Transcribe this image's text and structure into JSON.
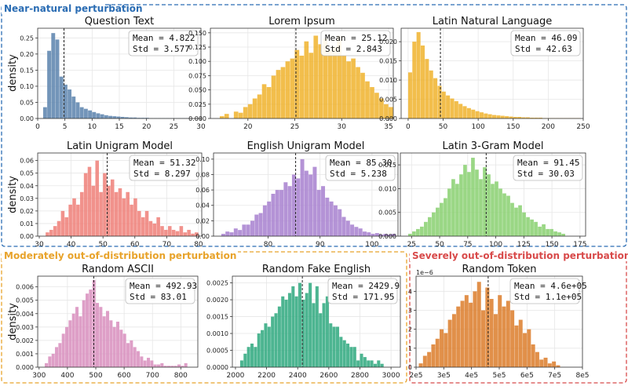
{
  "groups": [
    {
      "label": "Near-natural perturbation",
      "color": "#2a6cb3"
    },
    {
      "label": "Moderately out-of-distribution perturbation",
      "color": "#e8a32b"
    },
    {
      "label": "Severely out-of-distribution perturbation",
      "color": "#d84a4a"
    }
  ],
  "ylabel": "density",
  "chart_data": [
    {
      "type": "bar",
      "group": 0,
      "title": "Question Text",
      "color": "#5b82ad",
      "stats": {
        "mean": "4.822",
        "std": "3.577"
      },
      "mean_value": 4.822,
      "xlim": [
        0,
        30
      ],
      "ylim": [
        0,
        0.28
      ],
      "xticks": [
        0,
        5,
        10,
        15,
        20,
        25,
        30
      ],
      "xtick_labels": [
        "0",
        "5",
        "10",
        "15",
        "20",
        "25",
        "30"
      ],
      "yticks": [
        0,
        0.05,
        0.1,
        0.15,
        0.2,
        0.25
      ],
      "ytick_labels": [
        "0.00",
        "0.05",
        "0.10",
        "0.15",
        "0.20",
        "0.25"
      ],
      "bin_start": 1.0,
      "bin_width": 0.75,
      "values": [
        0.035,
        0.21,
        0.265,
        0.245,
        0.13,
        0.105,
        0.09,
        0.068,
        0.05,
        0.035,
        0.03,
        0.025,
        0.02,
        0.016,
        0.013,
        0.01,
        0.008,
        0.007,
        0.006,
        0.005,
        0.004,
        0.003,
        0.003,
        0.002,
        0.002,
        0.002,
        0.001,
        0.001,
        0.001,
        0.001,
        0.001,
        0.001,
        0.001,
        0.001,
        0.001,
        0.001
      ]
    },
    {
      "type": "bar",
      "group": 0,
      "title": "Lorem Ipsum",
      "color": "#f0b32d",
      "stats": {
        "mean": "25.12",
        "std": "2.843"
      },
      "mean_value": 25.12,
      "xlim": [
        16,
        35.5
      ],
      "ylim": [
        0,
        0.158
      ],
      "xticks": [
        20,
        25,
        30,
        35
      ],
      "xtick_labels": [
        "20",
        "25",
        "30",
        "35"
      ],
      "yticks": [
        0,
        0.025,
        0.05,
        0.075,
        0.1,
        0.125,
        0.15
      ],
      "ytick_labels": [
        "0.000",
        "0.025",
        "0.050",
        "0.075",
        "0.100",
        "0.125",
        "0.150"
      ],
      "bin_start": 17,
      "bin_width": 0.5,
      "values": [
        0.004,
        0.008,
        0.0,
        0.012,
        0.01,
        0.02,
        0.025,
        0.035,
        0.042,
        0.06,
        0.055,
        0.075,
        0.085,
        0.09,
        0.1,
        0.105,
        0.12,
        0.11,
        0.135,
        0.115,
        0.145,
        0.13,
        0.14,
        0.12,
        0.125,
        0.145,
        0.11,
        0.1,
        0.105,
        0.09,
        0.08,
        0.065,
        0.055,
        0.045,
        0.035,
        0.025,
        0.02,
        0.015
      ]
    },
    {
      "type": "bar",
      "group": 0,
      "title": "Latin Natural Language",
      "color": "#f0b32d",
      "stats": {
        "mean": "46.09",
        "std": "42.63"
      },
      "mean_value": 46.09,
      "xlim": [
        -10,
        250
      ],
      "ylim": [
        0,
        0.0235
      ],
      "xticks": [
        0,
        50,
        100,
        150,
        200,
        250
      ],
      "xtick_labels": [
        "0",
        "50",
        "100",
        "150",
        "200",
        "250"
      ],
      "yticks": [
        0,
        0.005,
        0.01,
        0.015,
        0.02
      ],
      "ytick_labels": [
        "0.000",
        "0.005",
        "0.010",
        "0.015",
        "0.020"
      ],
      "bin_start": 0,
      "bin_width": 6,
      "values": [
        0.012,
        0.02,
        0.0225,
        0.019,
        0.0155,
        0.0125,
        0.0105,
        0.0085,
        0.007,
        0.006,
        0.0052,
        0.0045,
        0.0038,
        0.0032,
        0.0027,
        0.0023,
        0.0019,
        0.0016,
        0.0013,
        0.0011,
        0.0009,
        0.0008,
        0.0007,
        0.0006,
        0.0005,
        0.0004,
        0.0004,
        0.0003,
        0.0003,
        0.0002,
        0.0002,
        0.0002,
        0.0001,
        0.0001,
        0.0001,
        0.0001,
        0.0001,
        0.0001,
        0.0001,
        0.0001,
        0.0001
      ]
    },
    {
      "type": "bar",
      "group": 0,
      "title": "Latin Unigram Model",
      "color": "#ee7f78",
      "stats": {
        "mean": "51.32",
        "std": "8.297"
      },
      "mean_value": 51.32,
      "xlim": [
        29.5,
        81
      ],
      "ylim": [
        0,
        0.066
      ],
      "xticks": [
        30,
        40,
        50,
        60,
        70,
        80
      ],
      "xtick_labels": [
        "30",
        "40",
        "50",
        "60",
        "70",
        "80"
      ],
      "yticks": [
        0,
        0.01,
        0.02,
        0.03,
        0.04,
        0.05,
        0.06
      ],
      "ytick_labels": [
        "0.00",
        "0.01",
        "0.02",
        "0.03",
        "0.04",
        "0.05",
        "0.06"
      ],
      "bin_start": 32,
      "bin_width": 1.2,
      "values": [
        0.003,
        0.005,
        0.008,
        0.012,
        0.02,
        0.015,
        0.025,
        0.03,
        0.025,
        0.035,
        0.05,
        0.055,
        0.04,
        0.06,
        0.035,
        0.05,
        0.04,
        0.045,
        0.035,
        0.038,
        0.03,
        0.035,
        0.025,
        0.03,
        0.02,
        0.015,
        0.02,
        0.012,
        0.01,
        0.015,
        0.008,
        0.005,
        0.008,
        0.005,
        0.004,
        0.008,
        0.003,
        0.005,
        0.002,
        0.003
      ]
    },
    {
      "type": "bar",
      "group": 0,
      "title": "English Unigram Model",
      "color": "#a780cf",
      "stats": {
        "mean": "85.30",
        "std": "5.238"
      },
      "mean_value": 85.3,
      "xlim": [
        69.5,
        105
      ],
      "ylim": [
        0,
        0.108
      ],
      "xticks": [
        80,
        90,
        100
      ],
      "xtick_labels": [
        "80",
        "90",
        "100"
      ],
      "yticks": [
        0,
        0.02,
        0.04,
        0.06,
        0.08,
        0.1
      ],
      "ytick_labels": [
        "0.00",
        "0.02",
        "0.04",
        "0.06",
        "0.08",
        "0.10"
      ],
      "bin_start": 71,
      "bin_width": 0.8,
      "values": [
        0.003,
        0.006,
        0.005,
        0.01,
        0.008,
        0.015,
        0.015,
        0.02,
        0.028,
        0.03,
        0.04,
        0.045,
        0.055,
        0.06,
        0.06,
        0.07,
        0.065,
        0.08,
        0.075,
        0.1,
        0.085,
        0.08,
        0.09,
        0.06,
        0.065,
        0.05,
        0.045,
        0.04,
        0.035,
        0.025,
        0.02,
        0.015,
        0.012,
        0.01,
        0.006,
        0.005,
        0.003,
        0.004,
        0.002,
        0.003,
        0.002,
        0.003
      ]
    },
    {
      "type": "bar",
      "group": 0,
      "title": "Latin 3-Gram Model",
      "color": "#88d070",
      "stats": {
        "mean": "91.45",
        "std": "30.03"
      },
      "mean_value": 91.45,
      "xlim": [
        15,
        180
      ],
      "ylim": [
        0,
        0.0175
      ],
      "xticks": [
        25,
        50,
        75,
        100,
        125,
        150,
        175
      ],
      "xtick_labels": [
        "25",
        "50",
        "75",
        "100",
        "125",
        "150",
        "175"
      ],
      "yticks": [
        0,
        0.005,
        0.01,
        0.015
      ],
      "ytick_labels": [
        "0.000",
        "0.005",
        "0.010",
        "0.015"
      ],
      "bin_start": 22,
      "bin_width": 3.5,
      "values": [
        0.0005,
        0.001,
        0.0015,
        0.002,
        0.003,
        0.004,
        0.005,
        0.006,
        0.007,
        0.008,
        0.01,
        0.012,
        0.011,
        0.013,
        0.015,
        0.0135,
        0.0165,
        0.014,
        0.012,
        0.0145,
        0.013,
        0.011,
        0.0115,
        0.01,
        0.009,
        0.0085,
        0.007,
        0.006,
        0.0065,
        0.005,
        0.004,
        0.0035,
        0.003,
        0.002,
        0.0025,
        0.0015,
        0.0015,
        0.001,
        0.0008,
        0.0005
      ]
    },
    {
      "type": "bar",
      "group": 1,
      "title": "Random ASCII",
      "color": "#d88ebd",
      "stats": {
        "mean": "492.93",
        "std": "83.01"
      },
      "mean_value": 492.93,
      "xlim": [
        295,
        860
      ],
      "ylim": [
        0,
        0.0068
      ],
      "xticks": [
        300,
        400,
        500,
        600,
        700,
        800
      ],
      "xtick_labels": [
        "300",
        "400",
        "500",
        "600",
        "700",
        "800"
      ],
      "yticks": [
        0,
        0.001,
        0.002,
        0.003,
        0.004,
        0.005,
        0.006
      ],
      "ytick_labels": [
        "0.000",
        "0.001",
        "0.002",
        "0.003",
        "0.004",
        "0.005",
        "0.006"
      ],
      "bin_start": 320,
      "bin_width": 12,
      "values": [
        0.0003,
        0.0008,
        0.001,
        0.0015,
        0.0018,
        0.0025,
        0.003,
        0.0035,
        0.004,
        0.0045,
        0.0038,
        0.005,
        0.0055,
        0.0058,
        0.0065,
        0.0048,
        0.0045,
        0.0038,
        0.0042,
        0.0035,
        0.003,
        0.0034,
        0.0028,
        0.0025,
        0.0018,
        0.002,
        0.0015,
        0.0012,
        0.0008,
        0.0005,
        0.0007,
        0.0005,
        0.0002,
        0.0002,
        0.0003,
        0.0001,
        0.0001,
        0.0001,
        0.0001,
        0.0002,
        0.0001,
        0.0003
      ]
    },
    {
      "type": "bar",
      "group": 1,
      "title": "Random Fake English",
      "color": "#2ea87e",
      "stats": {
        "mean": "2429.9",
        "std": "171.95"
      },
      "mean_value": 2429.9,
      "xlim": [
        1980,
        3060
      ],
      "ylim": [
        0,
        0.0027
      ],
      "xticks": [
        2000,
        2200,
        2400,
        2600,
        2800,
        3000
      ],
      "xtick_labels": [
        "2000",
        "2200",
        "2400",
        "2600",
        "2800",
        "3000"
      ],
      "yticks": [
        0,
        0.0005,
        0.001,
        0.0015,
        0.002,
        0.0025
      ],
      "ytick_labels": [
        "0.0000",
        "0.0005",
        "0.0010",
        "0.0015",
        "0.0020",
        "0.0025"
      ],
      "bin_start": 2030,
      "bin_width": 22,
      "values": [
        0.0002,
        0.0004,
        0.0006,
        0.0007,
        0.0006,
        0.001,
        0.0011,
        0.0013,
        0.0012,
        0.0015,
        0.0016,
        0.0018,
        0.0021,
        0.002,
        0.0022,
        0.0024,
        0.0021,
        0.0025,
        0.002,
        0.0022,
        0.0025,
        0.0019,
        0.0024,
        0.0016,
        0.0019,
        0.0021,
        0.0013,
        0.0012,
        0.0012,
        0.0009,
        0.0008,
        0.0007,
        0.0006,
        0.0006,
        0.0002,
        0.0004,
        0.0003,
        0.0002,
        0.0002,
        0.0001,
        0.0002,
        0.0001
      ]
    },
    {
      "type": "bar",
      "group": 2,
      "title": "Random Token",
      "color": "#dc7d2a",
      "stats": {
        "mean": "4.6e+05",
        "std": "1.1e+05"
      },
      "mean_value": 460000,
      "xlim": [
        200000,
        800000
      ],
      "ylim": [
        0,
        4.8e-06
      ],
      "y_multiplier": "1e−6",
      "xticks": [
        200000,
        300000,
        400000,
        500000,
        600000,
        700000,
        800000
      ],
      "xtick_labels": [
        "2e5",
        "3e5",
        "4e5",
        "5e5",
        "6e5",
        "7e5",
        "8e5"
      ],
      "yticks": [
        0,
        1e-06,
        2e-06,
        3e-06,
        4e-06
      ],
      "ytick_labels": [
        "0",
        "1",
        "2",
        "3",
        "4"
      ],
      "bin_start": 210000,
      "bin_width": 15000,
      "values": [
        2e-07,
        6e-07,
        8e-07,
        1.2e-06,
        1.5e-06,
        2e-06,
        1.8e-06,
        2.5e-06,
        2.8e-06,
        3.2e-06,
        3.5e-06,
        3.8e-06,
        3.4e-06,
        4e-06,
        4.5e-06,
        3e-06,
        4.2e-06,
        3.6e-06,
        2.8e-06,
        3.8e-06,
        3.2e-06,
        3.5e-06,
        3e-06,
        2.2e-06,
        2.5e-06,
        1.8e-06,
        2e-06,
        1.2e-06,
        8e-07,
        4e-07,
        5e-07,
        2e-07,
        3e-07,
        1e-07
      ]
    }
  ]
}
